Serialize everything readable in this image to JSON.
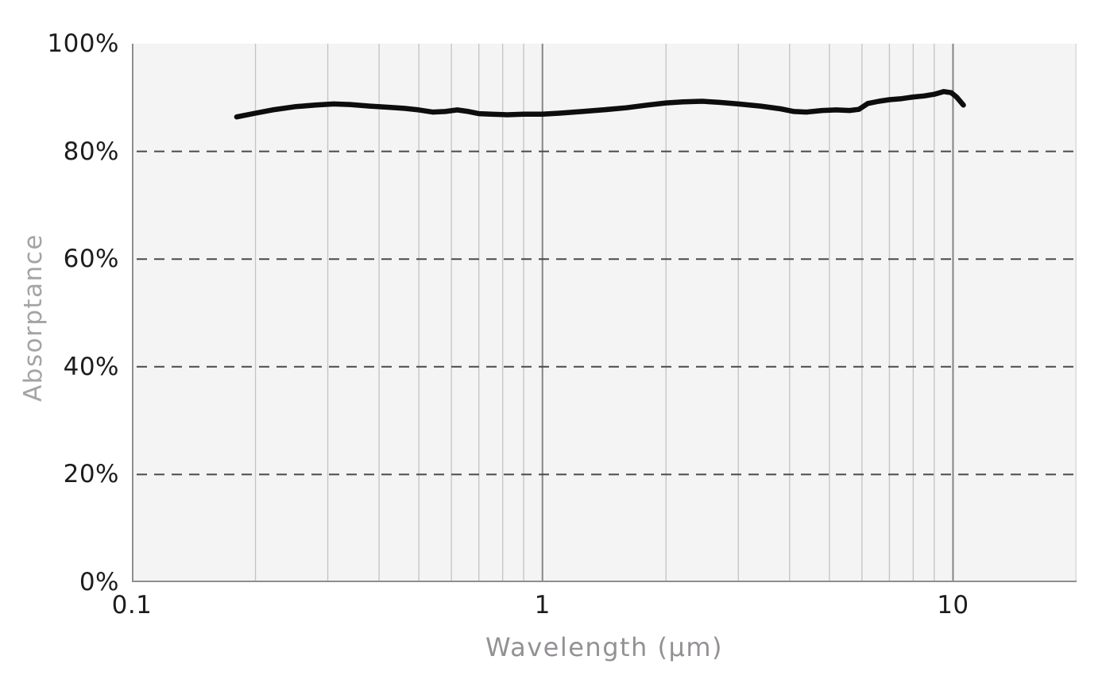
{
  "chart_data": {
    "type": "line",
    "title": "",
    "xlabel": "Wavelength (µm)",
    "ylabel": "Absorptance",
    "x_scale": "log",
    "x_range": [
      0.1,
      20
    ],
    "y_range": [
      0,
      100
    ],
    "grid": true,
    "legend": false,
    "x_ticks": [
      {
        "value": 0.1,
        "label": "0.1"
      },
      {
        "value": 1,
        "label": "1"
      },
      {
        "value": 10,
        "label": "10"
      }
    ],
    "y_ticks": [
      {
        "value": 0,
        "label": "0%"
      },
      {
        "value": 20,
        "label": "20%"
      },
      {
        "value": 40,
        "label": "40%"
      },
      {
        "value": 60,
        "label": "60%"
      },
      {
        "value": 80,
        "label": "80%"
      },
      {
        "value": 100,
        "label": "100%"
      }
    ],
    "x_gridlines_minor": [
      0.2,
      0.3,
      0.4,
      0.5,
      0.6,
      0.7,
      0.8,
      0.9,
      2,
      3,
      4,
      5,
      6,
      7,
      8,
      9,
      20
    ],
    "x_gridlines_major": [
      1,
      10
    ],
    "y_gridlines_dashed": [
      20,
      40,
      60,
      80
    ],
    "series": [
      {
        "name": "Absorptance",
        "color": "#0d0d0d",
        "points": [
          [
            0.18,
            86.4
          ],
          [
            0.2,
            87.1
          ],
          [
            0.22,
            87.7
          ],
          [
            0.25,
            88.3
          ],
          [
            0.28,
            88.6
          ],
          [
            0.31,
            88.8
          ],
          [
            0.34,
            88.7
          ],
          [
            0.38,
            88.4
          ],
          [
            0.42,
            88.2
          ],
          [
            0.46,
            88.0
          ],
          [
            0.5,
            87.7
          ],
          [
            0.54,
            87.3
          ],
          [
            0.58,
            87.4
          ],
          [
            0.62,
            87.7
          ],
          [
            0.66,
            87.4
          ],
          [
            0.7,
            87.0
          ],
          [
            0.75,
            86.9
          ],
          [
            0.82,
            86.8
          ],
          [
            0.9,
            86.9
          ],
          [
            1.0,
            86.9
          ],
          [
            1.1,
            87.1
          ],
          [
            1.25,
            87.4
          ],
          [
            1.4,
            87.7
          ],
          [
            1.6,
            88.1
          ],
          [
            1.8,
            88.6
          ],
          [
            2.0,
            89.0
          ],
          [
            2.2,
            89.2
          ],
          [
            2.45,
            89.3
          ],
          [
            2.7,
            89.1
          ],
          [
            3.0,
            88.8
          ],
          [
            3.4,
            88.4
          ],
          [
            3.8,
            87.9
          ],
          [
            4.1,
            87.4
          ],
          [
            4.4,
            87.3
          ],
          [
            4.8,
            87.6
          ],
          [
            5.2,
            87.7
          ],
          [
            5.6,
            87.6
          ],
          [
            5.9,
            87.8
          ],
          [
            6.2,
            88.9
          ],
          [
            6.6,
            89.3
          ],
          [
            7.0,
            89.6
          ],
          [
            7.5,
            89.8
          ],
          [
            8.0,
            90.1
          ],
          [
            8.5,
            90.3
          ],
          [
            9.0,
            90.6
          ],
          [
            9.5,
            91.1
          ],
          [
            9.9,
            90.9
          ],
          [
            10.2,
            90.1
          ],
          [
            10.6,
            88.6
          ]
        ]
      }
    ],
    "styles": {
      "plot_bg": "#f5f4f5",
      "axis_color": "#8e8e8e",
      "minor_grid_color": "#c6c6c6",
      "major_grid_color": "#858585",
      "edge_grid_color": "#d9d9d9",
      "dashed_grid_color": "#4a4a4a",
      "tick_label_color": "#1d1d1d",
      "x_title_color": "#949194",
      "y_title_color": "#a5a3a6",
      "line_color": "#0d0d0d"
    }
  }
}
